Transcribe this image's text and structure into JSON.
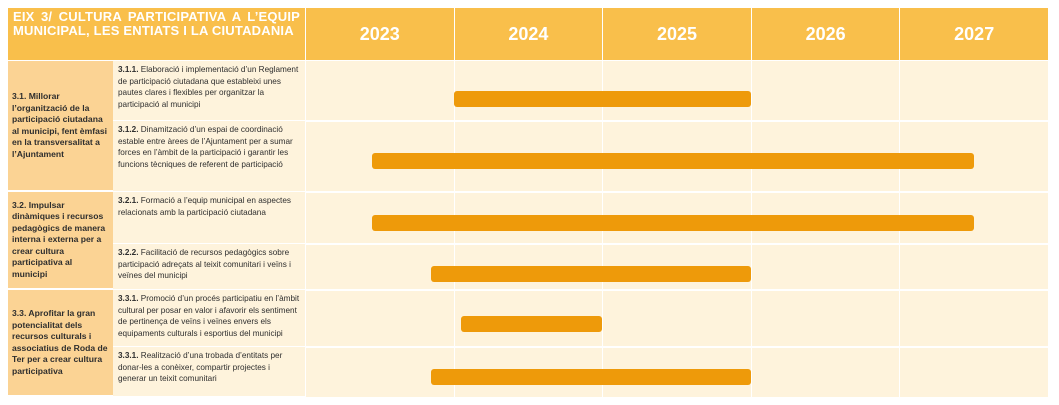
{
  "header": {
    "title": "EIX 3/ CULTURA PARTICIPATIVA A L’EQUIP MUNICIPAL, LES ENTIATS I LA CIUTADANIA",
    "years": [
      "2023",
      "2024",
      "2025",
      "2026",
      "2027"
    ]
  },
  "objectives": [
    {
      "label": "3.1. Millorar l’organització de la participació ciutadana al municipi, fent èmfasi en la transversalitat a l’Ajuntament"
    },
    {
      "label": "3.2. Impulsar dinàmiques i recursos pedagògics de manera interna i externa per a crear cultura participativa al municipi"
    },
    {
      "label": "3.3. Aprofitar la gran potencialitat dels recursos culturals i associatius de Roda de Ter per a crear cultura participativa"
    }
  ],
  "actions": [
    {
      "code": "3.1.1.",
      "text": "Elaboració i implementació d’un Reglament de participació ciutadana que estableixi unes pautes clares i flexibles per organitzar la participació al municipi"
    },
    {
      "code": "3.1.2.",
      "text": "Dinamització d’un espai de coordinació estable entre àrees de l’Ajuntament per a sumar forces en l’àmbit de la participació i garantir les funcions tècniques de referent de participació"
    },
    {
      "code": "3.2.1.",
      "text": "Formació a l’equip municipal en aspectes relacionats amb la participació ciutadana"
    },
    {
      "code": "3.2.2.",
      "text": "Facilitació de recursos pedagògics sobre participació adreçats al teixit comunitari i veïns i veïnes del municipi"
    },
    {
      "code": "3.3.1.",
      "text": "Promoció d’un procés participatiu en l’àmbit cultural per posar en valor i afavorir els sentiment de pertinença de veïns i veïnes envers els equipaments culturals i esportius del municipi"
    },
    {
      "code": "3.3.1.",
      "text": "Realització d’una trobada d’entitats per donar-les a conèixer, compartir projectes i generar un teixit comunitari"
    }
  ],
  "colors": {
    "header": "#f9bf4b",
    "objective_cell": "#fbd394",
    "action_cell": "#fef3dc",
    "bar": "#ee9a0a"
  },
  "chart_data": {
    "type": "gantt",
    "title": "EIX 3/ CULTURA PARTICIPATIVA A L’EQUIP MUNICIPAL, LES ENTIATS I LA CIUTADANIA",
    "xlabel": "",
    "ylabel": "",
    "x_categories": [
      "2023",
      "2024",
      "2025",
      "2026",
      "2027"
    ],
    "xlim": [
      2023,
      2028
    ],
    "grid": true,
    "tasks": [
      {
        "code": "3.1.1.",
        "start": 2024.0,
        "end": 2026.0
      },
      {
        "code": "3.1.2.",
        "start": 2023.45,
        "end": 2027.5
      },
      {
        "code": "3.2.1.",
        "start": 2023.45,
        "end": 2027.5
      },
      {
        "code": "3.2.2.",
        "start": 2023.85,
        "end": 2026.0
      },
      {
        "code": "3.3.1.",
        "start": 2024.05,
        "end": 2025.0
      },
      {
        "code": "3.3.1.",
        "start": 2023.85,
        "end": 2026.0
      }
    ]
  }
}
